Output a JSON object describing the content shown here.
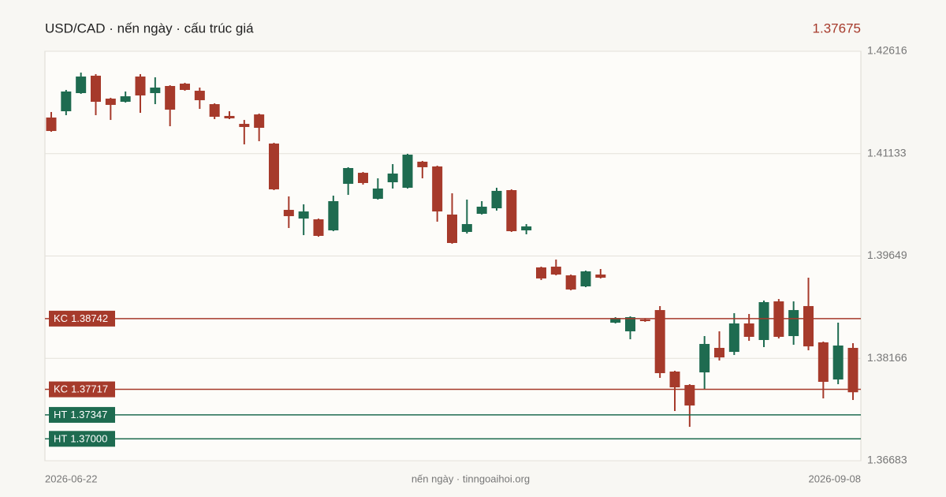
{
  "chart_data": {
    "type": "candlestick",
    "title": "USD/CAD · nến ngày · cấu trúc giá",
    "last_value": 1.37675,
    "footer": "nến ngày · tinngoaihoi.org",
    "categories": [
      "2026-06-22",
      null,
      null,
      null,
      null,
      null,
      null,
      null,
      null,
      null,
      null,
      null,
      null,
      null,
      null,
      null,
      null,
      null,
      null,
      null,
      null,
      null,
      null,
      null,
      null,
      null,
      null,
      null,
      null,
      null,
      null,
      null,
      null,
      null,
      null,
      null,
      null,
      null,
      null,
      null,
      null,
      null,
      null,
      null,
      null,
      null,
      null,
      null,
      null,
      null,
      null,
      null,
      null,
      null,
      "2026-09-08"
    ],
    "open": [
      1.41656,
      1.41747,
      1.4201,
      1.42262,
      1.4193,
      1.41884,
      1.4225,
      1.4201,
      1.42113,
      1.42147,
      1.42044,
      1.4185,
      1.41679,
      1.41564,
      1.41701,
      1.41279,
      1.40318,
      1.40192,
      1.40181,
      1.40021,
      1.40695,
      1.40855,
      1.40478,
      1.40718,
      1.40638,
      1.41016,
      1.40947,
      1.4025,
      1.39998,
      1.40261,
      1.40341,
      1.40604,
      1.40021,
      1.39484,
      1.39495,
      1.39369,
      1.39209,
      1.39381,
      1.38683,
      1.38558,
      1.38729,
      1.38866,
      1.37975,
      1.3778,
      1.37963,
      1.38318,
      1.3826,
      1.38672,
      1.38432,
      1.38992,
      1.38489,
      1.38924,
      1.38398,
      1.3786,
      1.38318
    ],
    "high": [
      1.41736,
      1.42056,
      1.42307,
      1.42285,
      1.41942,
      1.42033,
      1.42285,
      1.42239,
      1.42124,
      1.42159,
      1.4209,
      1.41862,
      1.41747,
      1.41621,
      1.41713,
      1.4129,
      1.40513,
      1.40398,
      1.40192,
      1.40524,
      1.40936,
      1.40867,
      1.40775,
      1.40981,
      1.4113,
      1.41027,
      1.40958,
      1.40558,
      1.40467,
      1.40444,
      1.40638,
      1.40615,
      1.40112,
      1.39495,
      1.39598,
      1.39381,
      1.39438,
      1.39461,
      1.38763,
      1.38775,
      1.38741,
      1.38924,
      1.37986,
      1.37792,
      1.38489,
      1.38558,
      1.38821,
      1.38809,
      1.39004,
      1.39026,
      1.38992,
      1.39335,
      1.38409,
      1.38683,
      1.38386
    ],
    "low": [
      1.4145,
      1.4169,
      1.41999,
      1.4169,
      1.41621,
      1.41873,
      1.41724,
      1.4185,
      1.4153,
      1.42044,
      1.41781,
      1.41633,
      1.41633,
      1.41267,
      1.41313,
      1.40604,
      1.40055,
      1.39952,
      1.39929,
      1.40009,
      1.40535,
      1.40684,
      1.40467,
      1.40627,
      1.40627,
      1.40775,
      1.40147,
      1.39827,
      1.39975,
      1.4025,
      1.40307,
      1.39998,
      1.39964,
      1.39301,
      1.39369,
      1.39152,
      1.39198,
      1.39324,
      1.38672,
      1.38443,
      1.38695,
      1.37883,
      1.37403,
      1.37174,
      1.37712,
      1.38135,
      1.38215,
      1.3842,
      1.38329,
      1.38455,
      1.38363,
      1.38283,
      1.37586,
      1.37792,
      1.37563
    ],
    "close": [
      1.41461,
      1.42033,
      1.4225,
      1.41884,
      1.41839,
      1.41964,
      1.41976,
      1.4209,
      1.4177,
      1.42056,
      1.41907,
      1.41667,
      1.41644,
      1.41519,
      1.41507,
      1.40615,
      1.40227,
      1.40295,
      1.39941,
      1.40444,
      1.40924,
      1.40707,
      1.40627,
      1.40844,
      1.41118,
      1.40936,
      1.40295,
      1.39838,
      1.40112,
      1.40364,
      1.40593,
      1.40009,
      1.40078,
      1.39324,
      1.39381,
      1.39164,
      1.39427,
      1.39335,
      1.38752,
      1.38763,
      1.38706,
      1.37952,
      1.37746,
      1.37483,
      1.38375,
      1.3818,
      1.38672,
      1.38478,
      1.38981,
      1.38478,
      1.38866,
      1.3834,
      1.37826,
      1.38352,
      1.37675
    ],
    "up_color": "#1e6b50",
    "down_color": "#a63a2b",
    "levels": {
      "names": [
        "KC",
        "KC",
        "HT",
        "HT"
      ],
      "values": [
        1.38742,
        1.37717,
        1.37347,
        1.37
      ],
      "value_labels": [
        "1.38742",
        "1.37717",
        "1.37347",
        "1.37000"
      ],
      "colors": [
        "#a63a2b",
        "#a63a2b",
        "#1e6b50",
        "#1e6b50"
      ]
    },
    "ylim": [
      1.36683,
      1.42616
    ],
    "yticks": [
      1.36683,
      1.38166,
      1.39649,
      1.41133,
      1.42616
    ],
    "grid": true
  }
}
